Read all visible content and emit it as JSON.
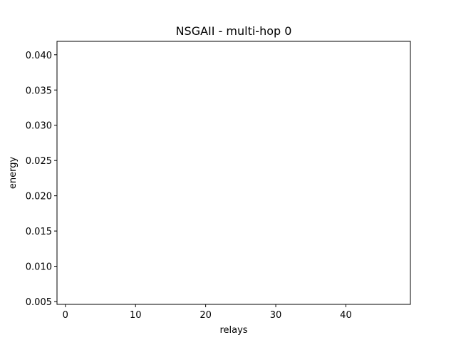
{
  "chart_data": {
    "type": "scatter",
    "title": "NSGAII - multi-hop 0",
    "xlabel": "relays",
    "ylabel": "energy",
    "xlim": [
      -1.2,
      49.2
    ],
    "ylim": [
      0.0046,
      0.0419
    ],
    "xticks": [
      0,
      10,
      20,
      30,
      40
    ],
    "xtick_labels": [
      "0",
      "10",
      "20",
      "30",
      "40"
    ],
    "yticks": [
      0.005,
      0.01,
      0.015,
      0.02,
      0.025,
      0.03,
      0.035,
      0.04
    ],
    "ytick_labels": [
      "0.005",
      "0.010",
      "0.015",
      "0.020",
      "0.025",
      "0.030",
      "0.035",
      "0.040"
    ],
    "series": [
      {
        "x": [],
        "y": []
      }
    ],
    "grid": false,
    "legend": "none"
  }
}
